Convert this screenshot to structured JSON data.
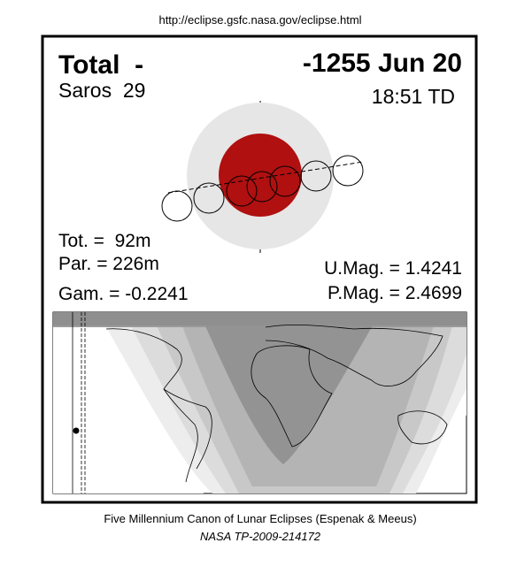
{
  "header": {
    "url": "http://eclipse.gsfc.nasa.gov/eclipse.html"
  },
  "eclipse": {
    "type": "Total  -",
    "date": "-1255 Jun 20",
    "saros": "Saros  29",
    "time": "18:51 TD",
    "totality": "Tot. =  92m",
    "partial": "Par. = 226m",
    "gamma": "Gam. = -0.2241",
    "umbral_mag": "U.Mag. = 1.4241",
    "penumbral_mag": "P.Mag. = 2.4699"
  },
  "footer": {
    "title": "Five Millennium Canon of Lunar Eclipses (Espenak & Meeus)",
    "reference": "NASA TP-2009-214172"
  }
}
